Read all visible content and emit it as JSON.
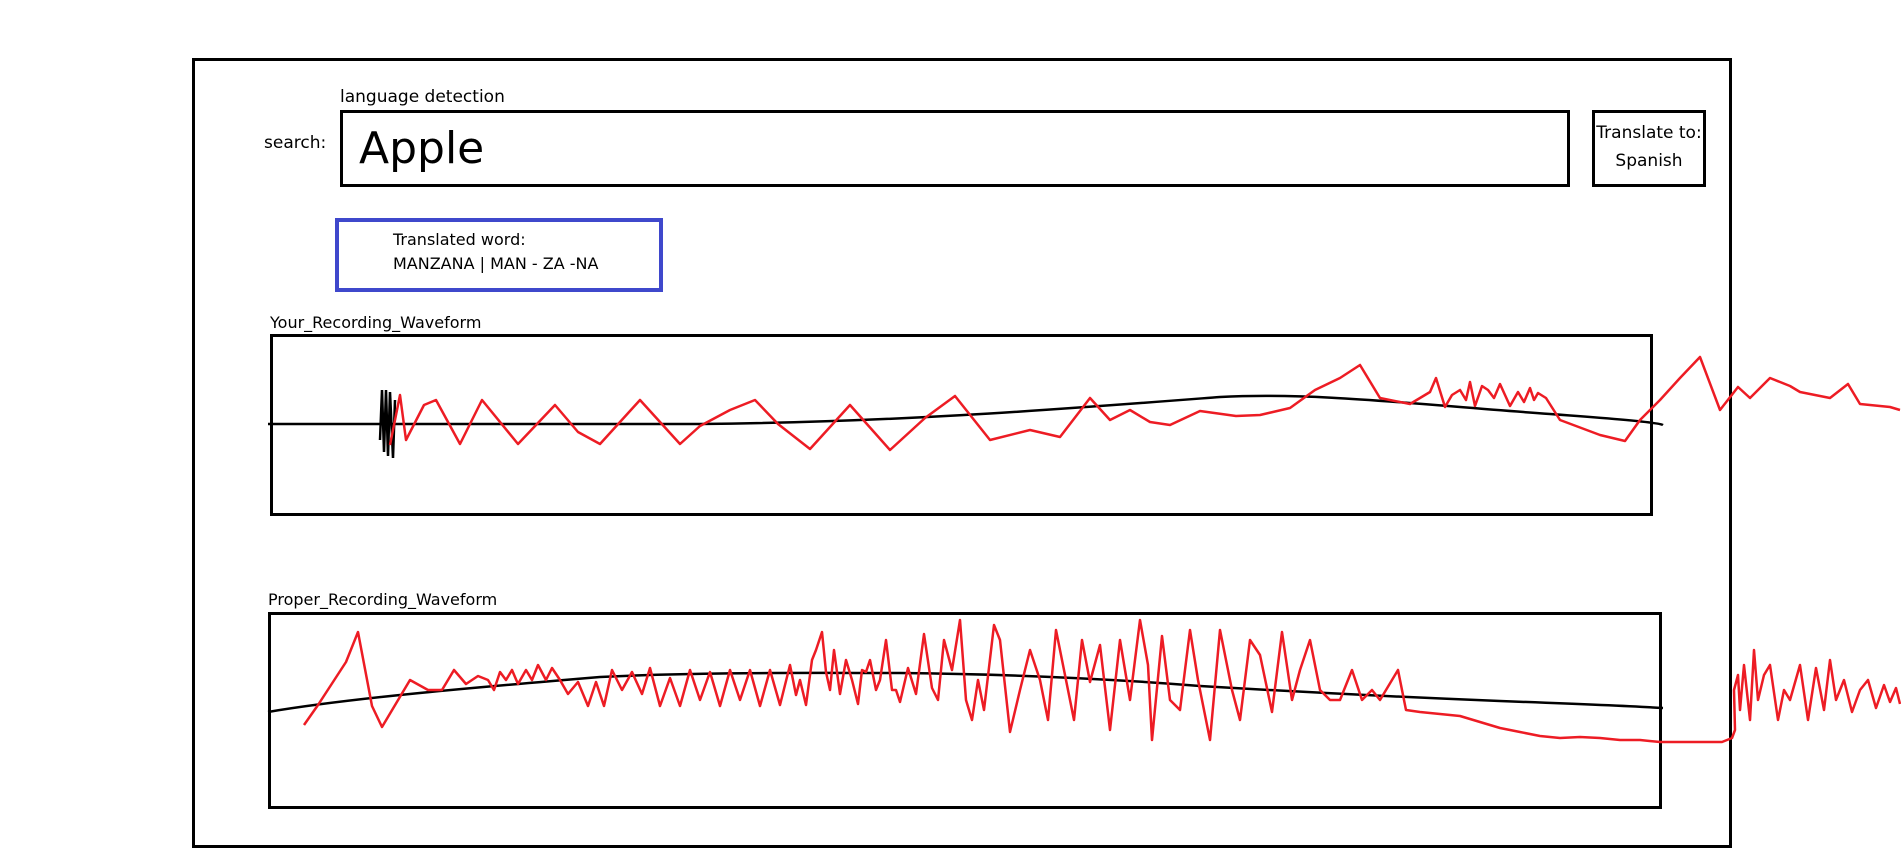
{
  "search": {
    "detection_label": "language detection",
    "label": "search:",
    "value": "Apple"
  },
  "translate_to": {
    "label": "Translate to:",
    "language": "Spanish"
  },
  "translation": {
    "heading": "Translated word:",
    "result": "MANZANA | MAN - ZA -NA",
    "border_color": "#3f48cc"
  },
  "waveforms": {
    "your_recording": {
      "title": "Your_Recording_Waveform",
      "wave_color": "#ed1c24",
      "envelope_color": "#000000"
    },
    "proper_recording": {
      "title": "Proper_Recording_Waveform",
      "wave_color": "#ed1c24",
      "envelope_color": "#000000"
    }
  }
}
